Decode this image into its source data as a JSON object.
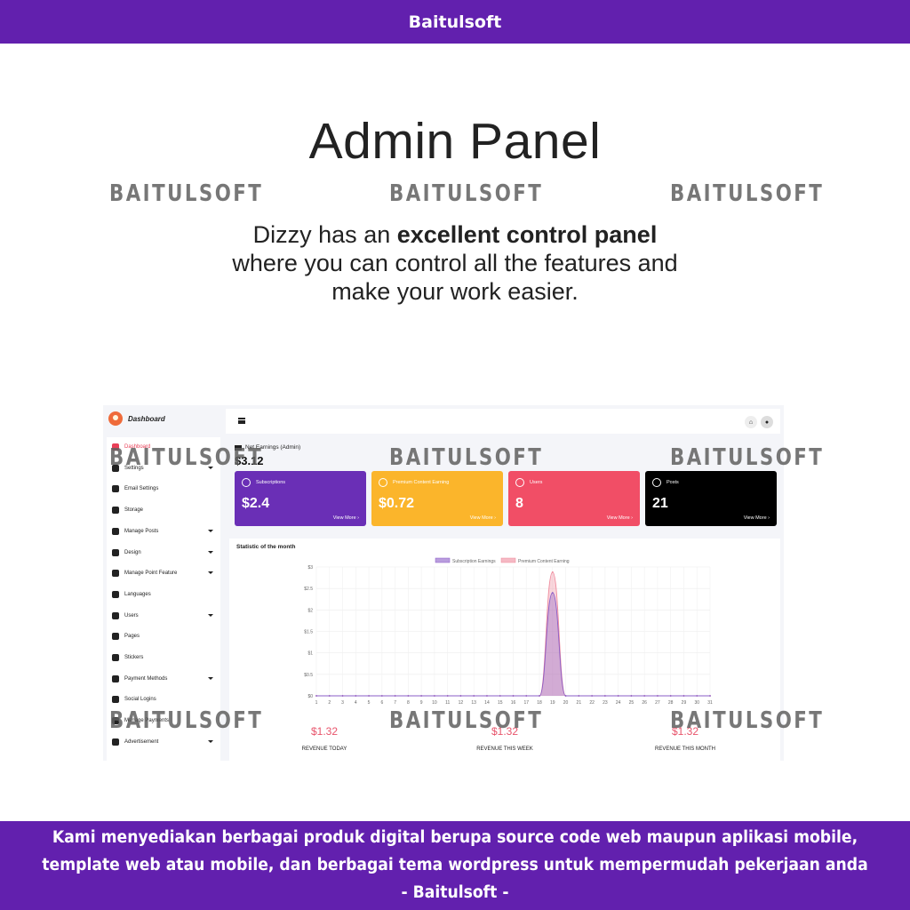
{
  "brand": "Baitulsoft",
  "hero": {
    "title": "Admin Panel",
    "line1_prefix": "Dizzy has an ",
    "line1_bold": "excellent control panel",
    "line2": "where you can control all the features and",
    "line3": "make your work easier."
  },
  "watermark": "BAITULSOFT",
  "footer": {
    "line1": "Kami menyediakan berbagai produk digital berupa source code web maupun aplikasi mobile,",
    "line2": "template web atau mobile, dan berbagai tema wordpress untuk mempermudah pekerjaan anda",
    "line3": "- Baitulsoft -"
  },
  "admin": {
    "sidebar_title": "Dashboard",
    "sidebar": [
      {
        "label": "Dashboard",
        "active": true,
        "caret": false
      },
      {
        "label": "Settings",
        "active": false,
        "caret": true
      },
      {
        "label": "Email Settings",
        "active": false,
        "caret": false
      },
      {
        "label": "Storage",
        "active": false,
        "caret": false
      },
      {
        "label": "Manage Posts",
        "active": false,
        "caret": true
      },
      {
        "label": "Design",
        "active": false,
        "caret": true
      },
      {
        "label": "Manage Point Feature",
        "active": false,
        "caret": true
      },
      {
        "label": "Languages",
        "active": false,
        "caret": false
      },
      {
        "label": "Users",
        "active": false,
        "caret": true
      },
      {
        "label": "Pages",
        "active": false,
        "caret": false
      },
      {
        "label": "Stickers",
        "active": false,
        "caret": false
      },
      {
        "label": "Payment Methods",
        "active": false,
        "caret": true
      },
      {
        "label": "Social Logins",
        "active": false,
        "caret": false
      },
      {
        "label": "Manage Payments",
        "active": false,
        "caret": false
      },
      {
        "label": "Advertisement",
        "active": false,
        "caret": true
      }
    ],
    "net_earnings_label": "Net Earnings (Admin)",
    "net_earnings_value": "$3.12",
    "cards": [
      {
        "label": "Subscriptions",
        "value": "$2.4",
        "more": "View More ›",
        "color": "#6a2fb6",
        "icon": "users-icon"
      },
      {
        "label": "Premium Content Earning",
        "value": "$0.72",
        "more": "View More ›",
        "color": "#fbb52b",
        "icon": "diamond-icon"
      },
      {
        "label": "Users",
        "value": "8",
        "more": "View More ›",
        "color": "#f14e66",
        "icon": "user-group-icon"
      },
      {
        "label": "Posts",
        "value": "21",
        "more": "View More ›",
        "color": "#000000",
        "icon": "feather-icon"
      }
    ],
    "stat_title": "Statistic of the month",
    "revenue": [
      {
        "value": "$1.32",
        "label": "REVENUE TODAY"
      },
      {
        "value": "$1.32",
        "label": "REVENUE THIS WEEK"
      },
      {
        "value": "$1.32",
        "label": "REVENUE THIS MONTH"
      }
    ]
  },
  "chart_data": {
    "type": "area",
    "x": [
      "1",
      "2",
      "3",
      "4",
      "5",
      "6",
      "7",
      "8",
      "9",
      "10",
      "11",
      "12",
      "13",
      "14",
      "15",
      "16",
      "17",
      "18",
      "19",
      "20",
      "21",
      "22",
      "23",
      "24",
      "25",
      "26",
      "27",
      "28",
      "29",
      "30",
      "31"
    ],
    "yticks": [
      "$0",
      "$0.5",
      "$1",
      "$1.5",
      "$2",
      "$2.5",
      "$3"
    ],
    "ylim": [
      0,
      3
    ],
    "legend": "top",
    "series": [
      {
        "name": "Subscription Earnings",
        "color": "#8a5cc7",
        "values": [
          0,
          0,
          0,
          0,
          0,
          0,
          0,
          0,
          0,
          0,
          0,
          0,
          0,
          0,
          0,
          0,
          0,
          0,
          2.4,
          0,
          0,
          0,
          0,
          0,
          0,
          0,
          0,
          0,
          0,
          0,
          0
        ]
      },
      {
        "name": "Premium Content Earning",
        "color": "#ef8a9c",
        "values": [
          0,
          0,
          0,
          0,
          0,
          0,
          0,
          0,
          0,
          0,
          0,
          0,
          0,
          0,
          0,
          0,
          0,
          0,
          2.88,
          0,
          0,
          0,
          0,
          0,
          0,
          0,
          0,
          0,
          0,
          0,
          0
        ]
      }
    ]
  }
}
